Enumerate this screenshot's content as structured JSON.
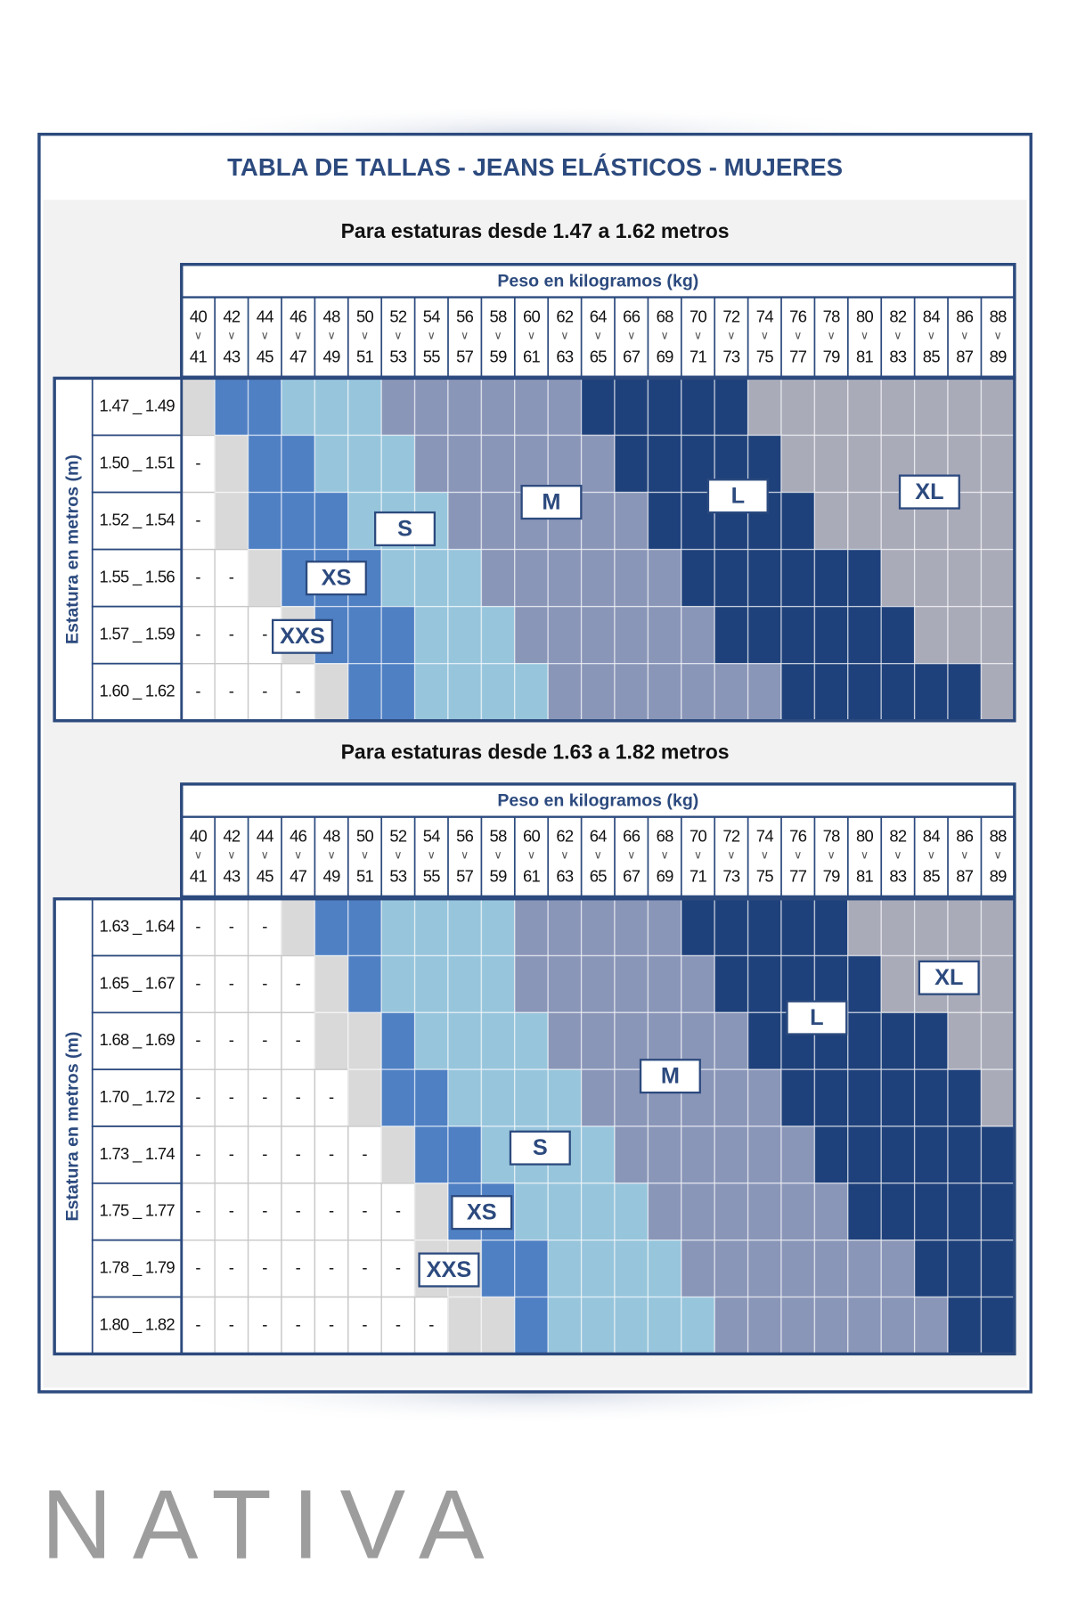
{
  "title": "TABLA DE TALLAS - JEANS ELÁSTICOS - MUJERES",
  "sizes": [
    {
      "label": "XXS",
      "color": "#d9d9d9"
    },
    {
      "label": "XS",
      "color": "#4f80c4"
    },
    {
      "label": "S",
      "color": "#97c5dc"
    },
    {
      "label": "M",
      "color": "#8a96b8"
    },
    {
      "label": "L",
      "color": "#1f417b"
    },
    {
      "label": "XL",
      "color": "#a9abb9"
    }
  ],
  "sections": [
    {
      "subtitle": "Para estaturas desde 1.47 a 1.62 metros",
      "column_header": "Peso en kilogramos (kg)",
      "row_header": "Estatura en metros (m)",
      "range_symbol": "∨",
      "columns": [
        [
          40,
          41
        ],
        [
          42,
          43
        ],
        [
          44,
          45
        ],
        [
          46,
          47
        ],
        [
          48,
          49
        ],
        [
          50,
          51
        ],
        [
          52,
          53
        ],
        [
          54,
          55
        ],
        [
          56,
          57
        ],
        [
          58,
          59
        ],
        [
          60,
          61
        ],
        [
          62,
          63
        ],
        [
          64,
          65
        ],
        [
          66,
          67
        ],
        [
          68,
          69
        ],
        [
          70,
          71
        ],
        [
          72,
          73
        ],
        [
          74,
          75
        ],
        [
          76,
          77
        ],
        [
          78,
          79
        ],
        [
          80,
          81
        ],
        [
          82,
          83
        ],
        [
          84,
          85
        ],
        [
          86,
          87
        ],
        [
          88,
          89
        ]
      ],
      "rows": [
        {
          "label": "1.47 _ 1.49",
          "cells": [
            "XXS",
            "XS",
            "XS",
            "S",
            "S",
            "S",
            "M",
            "M",
            "M",
            "M",
            "M",
            "M",
            "L",
            "L",
            "L",
            "L",
            "L",
            "XL",
            "XL",
            "XL",
            "XL",
            "XL",
            "XL",
            "XL",
            "XL"
          ]
        },
        {
          "label": "1.50 _ 1.51",
          "cells": [
            "-",
            "XXS",
            "XS",
            "XS",
            "S",
            "S",
            "S",
            "M",
            "M",
            "M",
            "M",
            "M",
            "M",
            "L",
            "L",
            "L",
            "L",
            "L",
            "XL",
            "XL",
            "XL",
            "XL",
            "XL",
            "XL",
            "XL"
          ]
        },
        {
          "label": "1.52 _ 1.54",
          "cells": [
            "-",
            "XXS",
            "XS",
            "XS",
            "XS",
            "S",
            "S",
            "S",
            "M",
            "M",
            "M",
            "M",
            "M",
            "M",
            "L",
            "L",
            "L",
            "L",
            "L",
            "XL",
            "XL",
            "XL",
            "XL",
            "XL",
            "XL"
          ]
        },
        {
          "label": "1.55 _ 1.56",
          "cells": [
            "-",
            "-",
            "XXS",
            "XS",
            "XS",
            "XS",
            "S",
            "S",
            "S",
            "M",
            "M",
            "M",
            "M",
            "M",
            "M",
            "L",
            "L",
            "L",
            "L",
            "L",
            "L",
            "XL",
            "XL",
            "XL",
            "XL"
          ]
        },
        {
          "label": "1.57 _ 1.59",
          "cells": [
            "-",
            "-",
            "-",
            "XXS",
            "XS",
            "XS",
            "XS",
            "S",
            "S",
            "S",
            "M",
            "M",
            "M",
            "M",
            "M",
            "M",
            "L",
            "L",
            "L",
            "L",
            "L",
            "L",
            "XL",
            "XL",
            "XL"
          ]
        },
        {
          "label": "1.60 _ 1.62",
          "cells": [
            "-",
            "-",
            "-",
            "-",
            "XXS",
            "XS",
            "XS",
            "S",
            "S",
            "S",
            "S",
            "M",
            "M",
            "M",
            "M",
            "M",
            "M",
            "M",
            "L",
            "L",
            "L",
            "L",
            "L",
            "L",
            "XL"
          ]
        }
      ]
    },
    {
      "subtitle": "Para estaturas desde 1.63 a 1.82 metros",
      "column_header": "Peso en kilogramos (kg)",
      "row_header": "Estatura en metros (m)",
      "range_symbol": "∨",
      "columns": [
        [
          40,
          41
        ],
        [
          42,
          43
        ],
        [
          44,
          45
        ],
        [
          46,
          47
        ],
        [
          48,
          49
        ],
        [
          50,
          51
        ],
        [
          52,
          53
        ],
        [
          54,
          55
        ],
        [
          56,
          57
        ],
        [
          58,
          59
        ],
        [
          60,
          61
        ],
        [
          62,
          63
        ],
        [
          64,
          65
        ],
        [
          66,
          67
        ],
        [
          68,
          69
        ],
        [
          70,
          71
        ],
        [
          72,
          73
        ],
        [
          74,
          75
        ],
        [
          76,
          77
        ],
        [
          78,
          79
        ],
        [
          80,
          81
        ],
        [
          82,
          83
        ],
        [
          84,
          85
        ],
        [
          86,
          87
        ],
        [
          88,
          89
        ]
      ],
      "rows": [
        {
          "label": "1.63 _ 1.64",
          "cells": [
            "-",
            "-",
            "-",
            "XXS",
            "XS",
            "XS",
            "S",
            "S",
            "S",
            "S",
            "M",
            "M",
            "M",
            "M",
            "M",
            "L",
            "L",
            "L",
            "L",
            "L",
            "XL",
            "XL",
            "XL",
            "XL",
            "XL"
          ]
        },
        {
          "label": "1.65 _ 1.67",
          "cells": [
            "-",
            "-",
            "-",
            "-",
            "XXS",
            "XS",
            "S",
            "S",
            "S",
            "S",
            "M",
            "M",
            "M",
            "M",
            "M",
            "M",
            "L",
            "L",
            "L",
            "L",
            "L",
            "XL",
            "XL",
            "XL",
            "XL"
          ]
        },
        {
          "label": "1.68 _ 1.69",
          "cells": [
            "-",
            "-",
            "-",
            "-",
            "XXS",
            "XXS",
            "XS",
            "S",
            "S",
            "S",
            "S",
            "M",
            "M",
            "M",
            "M",
            "M",
            "M",
            "L",
            "L",
            "L",
            "L",
            "L",
            "L",
            "XL",
            "XL"
          ]
        },
        {
          "label": "1.70 _ 1.72",
          "cells": [
            "-",
            "-",
            "-",
            "-",
            "-",
            "XXS",
            "XS",
            "XS",
            "S",
            "S",
            "S",
            "S",
            "M",
            "M",
            "M",
            "M",
            "M",
            "M",
            "L",
            "L",
            "L",
            "L",
            "L",
            "L",
            "XL"
          ]
        },
        {
          "label": "1.73 _ 1.74",
          "cells": [
            "-",
            "-",
            "-",
            "-",
            "-",
            "-",
            "XXS",
            "XS",
            "XS",
            "S",
            "S",
            "S",
            "S",
            "M",
            "M",
            "M",
            "M",
            "M",
            "M",
            "L",
            "L",
            "L",
            "L",
            "L",
            "L"
          ]
        },
        {
          "label": "1.75 _ 1.77",
          "cells": [
            "-",
            "-",
            "-",
            "-",
            "-",
            "-",
            "-",
            "XXS",
            "XS",
            "XS",
            "S",
            "S",
            "S",
            "S",
            "M",
            "M",
            "M",
            "M",
            "M",
            "M",
            "L",
            "L",
            "L",
            "L",
            "L"
          ]
        },
        {
          "label": "1.78 _ 1.79",
          "cells": [
            "-",
            "-",
            "-",
            "-",
            "-",
            "-",
            "-",
            "XXS",
            "XXS",
            "XS",
            "XS",
            "S",
            "S",
            "S",
            "S",
            "M",
            "M",
            "M",
            "M",
            "M",
            "M",
            "M",
            "L",
            "L",
            "L"
          ]
        },
        {
          "label": "1.80 _ 1.82",
          "cells": [
            "-",
            "-",
            "-",
            "-",
            "-",
            "-",
            "-",
            "-",
            "XXS",
            "XXS",
            "XS",
            "S",
            "S",
            "S",
            "S",
            "S",
            "M",
            "M",
            "M",
            "M",
            "M",
            "M",
            "M",
            "L",
            "L"
          ]
        }
      ]
    }
  ],
  "brand": "NATIVA"
}
